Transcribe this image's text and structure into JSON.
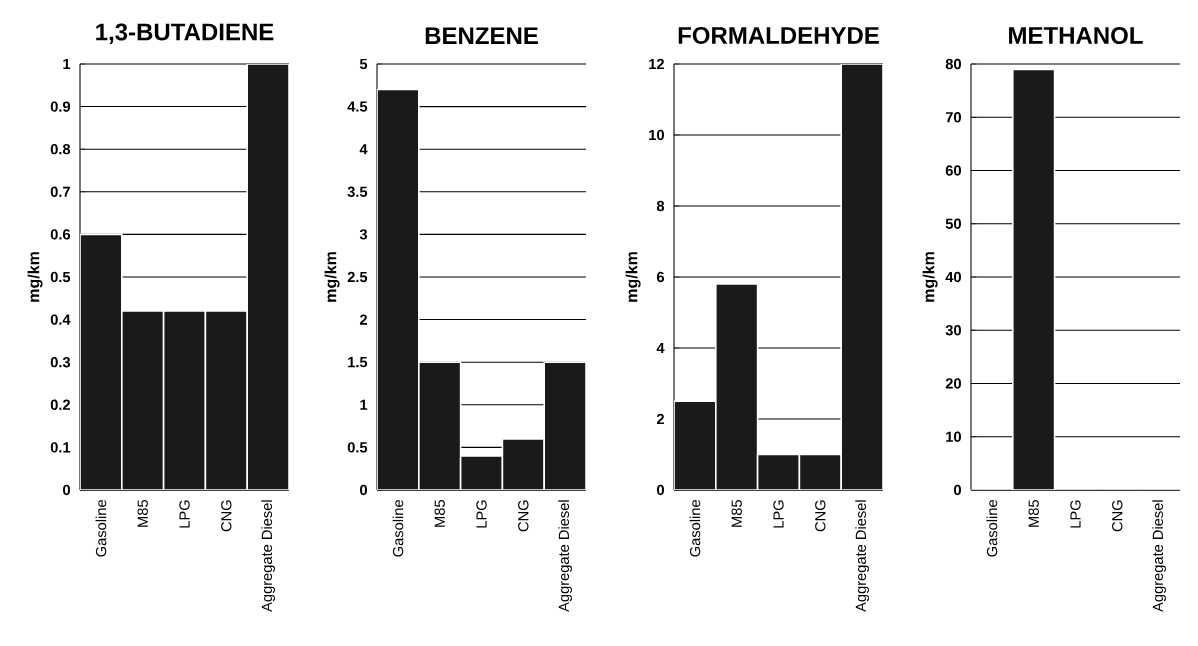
{
  "chart_data": [
    {
      "type": "bar",
      "title": "1,3-BUTADIENE",
      "ylabel": "mg/km",
      "categories": [
        "Gasoline",
        "M85",
        "LPG",
        "CNG",
        "Aggregate Diesel"
      ],
      "values": [
        0.6,
        0.42,
        0.42,
        0.42,
        1.0
      ],
      "color": "#1a1a1a",
      "ylim": [
        0,
        1
      ],
      "yticks": [
        0,
        0.1,
        0.2,
        0.3,
        0.4,
        0.5,
        0.6,
        0.7,
        0.8,
        0.9,
        1
      ],
      "grid": "y"
    },
    {
      "type": "bar",
      "title": "BENZENE",
      "ylabel": "mg/km",
      "categories": [
        "Gasoline",
        "M85",
        "LPG",
        "CNG",
        "Aggregate Diesel"
      ],
      "values": [
        4.7,
        1.5,
        0.4,
        0.6,
        1.5
      ],
      "color": "#1a1a1a",
      "ylim": [
        0,
        5
      ],
      "yticks": [
        0,
        0.5,
        1,
        1.5,
        2,
        2.5,
        3,
        3.5,
        4,
        4.5,
        5
      ],
      "grid": "y"
    },
    {
      "type": "bar",
      "title": "FORMALDEHYDE",
      "ylabel": "mg/km",
      "categories": [
        "Gasoline",
        "M85",
        "LPG",
        "CNG",
        "Aggregate Diesel"
      ],
      "values": [
        2.5,
        5.8,
        1.0,
        1.0,
        12
      ],
      "color": "#1a1a1a",
      "ylim": [
        0,
        12
      ],
      "yticks": [
        0,
        2,
        4,
        6,
        8,
        10,
        12
      ],
      "grid": "y"
    },
    {
      "type": "bar",
      "title": "METHANOL",
      "ylabel": "mg/km",
      "categories": [
        "Gasoline",
        "M85",
        "LPG",
        "CNG",
        "Aggregate Diesel"
      ],
      "values": [
        0,
        79,
        0,
        0,
        0
      ],
      "color": "#1a1a1a",
      "ylim": [
        0,
        80
      ],
      "yticks": [
        0,
        10,
        20,
        30,
        40,
        50,
        60,
        70,
        80
      ],
      "grid": "y"
    }
  ]
}
